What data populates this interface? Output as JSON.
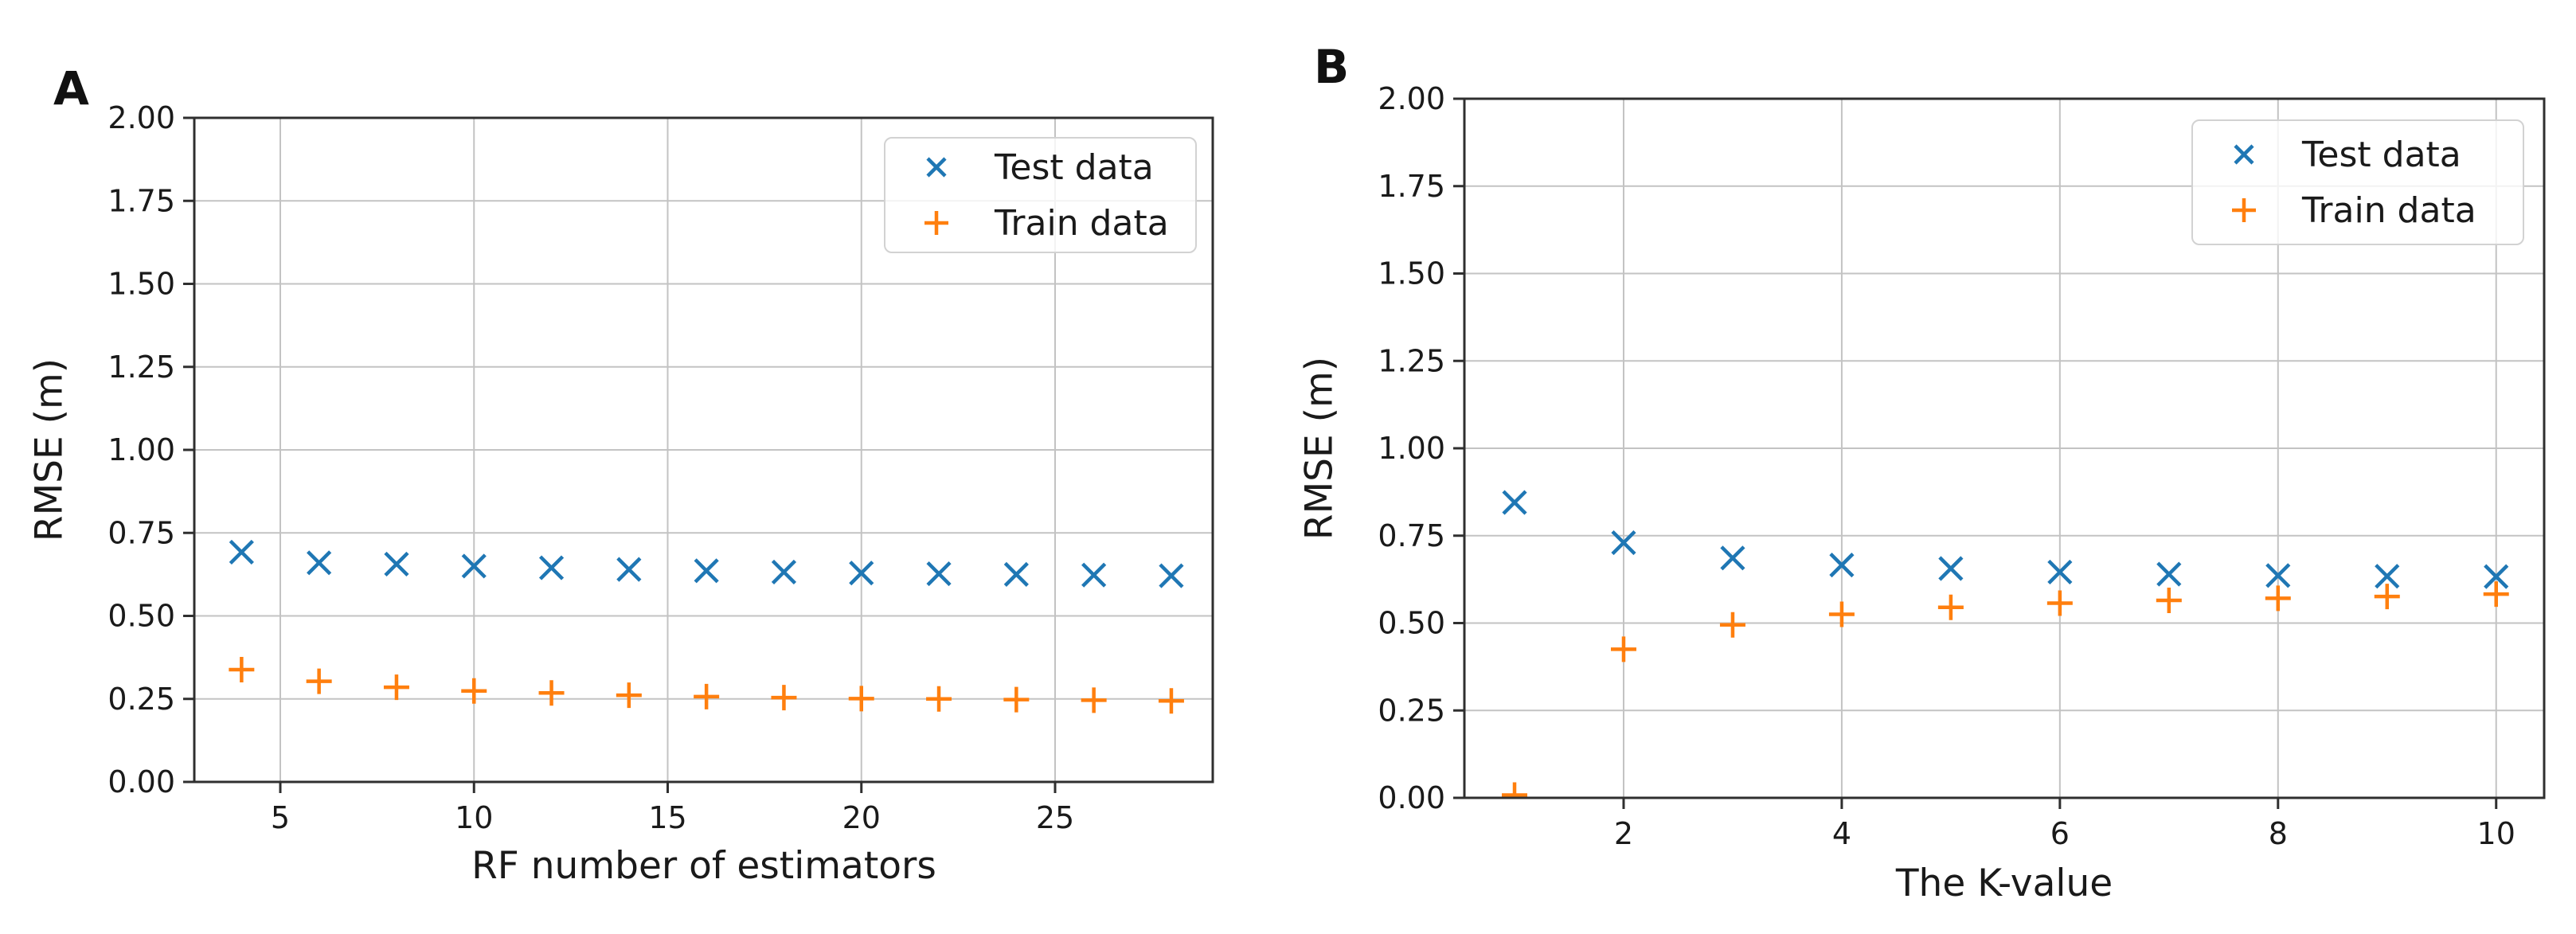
{
  "figure": {
    "background": "#ffffff"
  },
  "chart_data": [
    {
      "panel_label": "A",
      "type": "scatter",
      "title": "",
      "xlabel": "RF number of estimators",
      "ylabel": "RMSE (m)",
      "xlim": [
        2.78,
        29.07
      ],
      "ylim": [
        0,
        2
      ],
      "xticks": [
        5,
        10,
        15,
        20,
        25
      ],
      "yticks": [
        0,
        0.25,
        0.5,
        0.75,
        1,
        1.25,
        1.5,
        1.75,
        2
      ],
      "ytick_format": "2dp",
      "grid": true,
      "grid_color": "#c3c3c3",
      "spine_color": "#2f2f2f",
      "tick_label_color": "#1a1a1a",
      "legend_position": "upper right",
      "x": [
        4,
        6,
        8,
        10,
        12,
        14,
        16,
        18,
        20,
        22,
        24,
        26,
        28
      ],
      "series": [
        {
          "name": "Test data",
          "marker": "x",
          "color": "#1f77b4",
          "values": [
            0.692,
            0.66,
            0.656,
            0.65,
            0.645,
            0.64,
            0.636,
            0.632,
            0.629,
            0.627,
            0.625,
            0.623,
            0.621
          ]
        },
        {
          "name": "Train data",
          "marker": "+",
          "color": "#ff7f0e",
          "values": [
            0.338,
            0.303,
            0.285,
            0.274,
            0.268,
            0.261,
            0.257,
            0.254,
            0.251,
            0.25,
            0.248,
            0.246,
            0.244
          ]
        }
      ]
    },
    {
      "panel_label": "B",
      "type": "scatter",
      "title": "",
      "xlabel": "The K-value",
      "ylabel": "RMSE (m)",
      "xlim": [
        0.54,
        10.44
      ],
      "ylim": [
        0,
        2
      ],
      "xticks": [
        2,
        4,
        6,
        8,
        10
      ],
      "yticks": [
        0,
        0.25,
        0.5,
        0.75,
        1,
        1.25,
        1.5,
        1.75,
        2
      ],
      "ytick_format": "2dp",
      "grid": true,
      "grid_color": "#c3c3c3",
      "spine_color": "#2f2f2f",
      "tick_label_color": "#1a1a1a",
      "legend_position": "upper right",
      "x": [
        1,
        2,
        3,
        4,
        5,
        6,
        7,
        8,
        9,
        10
      ],
      "series": [
        {
          "name": "Test data",
          "marker": "x",
          "color": "#1f77b4",
          "values": [
            0.845,
            0.73,
            0.686,
            0.666,
            0.656,
            0.646,
            0.64,
            0.636,
            0.634,
            0.633
          ]
        },
        {
          "name": "Train data",
          "marker": "+",
          "color": "#ff7f0e",
          "values": [
            0.008,
            0.425,
            0.495,
            0.525,
            0.545,
            0.557,
            0.565,
            0.571,
            0.576,
            0.583
          ]
        }
      ]
    }
  ]
}
